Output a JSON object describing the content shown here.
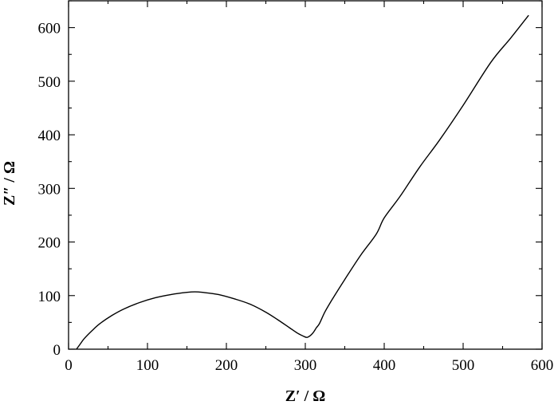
{
  "chart_data": {
    "type": "line",
    "xlabel": "Z′ / Ω",
    "ylabel": "Z″ / Ω",
    "xlim": [
      0,
      600
    ],
    "ylim": [
      0,
      650
    ],
    "xticks": [
      0,
      100,
      200,
      300,
      400,
      500,
      600
    ],
    "yticks": [
      0,
      100,
      200,
      300,
      400,
      500,
      600
    ],
    "x_minor_step": 50,
    "y_minor_step": 50,
    "grid": false,
    "series": [
      {
        "color": "#000000",
        "x": [
          10,
          14,
          20,
          30,
          40,
          55,
          70,
          90,
          110,
          130,
          150,
          160,
          170,
          190,
          210,
          230,
          250,
          265,
          280,
          290,
          298,
          302,
          306,
          310,
          314,
          318,
          325,
          335,
          350,
          370,
          390,
          400,
          420,
          445,
          470,
          500,
          535,
          560,
          583
        ],
        "y": [
          0,
          8,
          20,
          35,
          48,
          63,
          75,
          87,
          96,
          102,
          106,
          107,
          106,
          102,
          94,
          84,
          69,
          55,
          40,
          30,
          24,
          22,
          25,
          31,
          40,
          48,
          70,
          95,
          130,
          175,
          215,
          245,
          285,
          340,
          390,
          455,
          535,
          580,
          623
        ]
      }
    ]
  }
}
